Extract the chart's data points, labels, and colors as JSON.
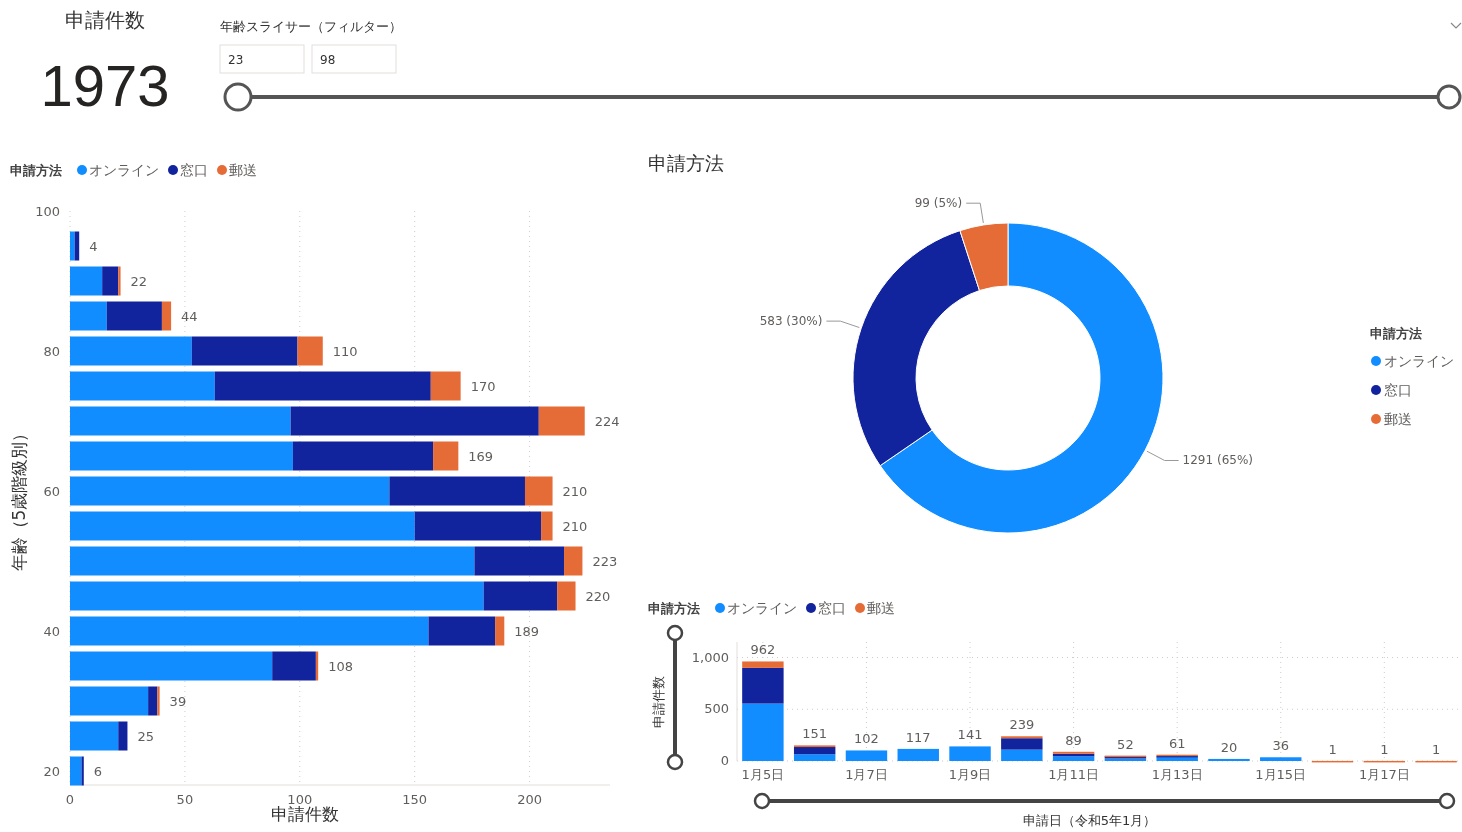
{
  "chart_data": [
    {
      "type": "other",
      "title": "申請件数",
      "annotations": [
        "1973",
        "年齢スライサー（フィルター）",
        "23",
        "98"
      ]
    },
    {
      "type": "bar",
      "orientation": "horizontal",
      "stacked": true,
      "xlabel": "申請件数",
      "ylabel": "年齢（5歳階級別）",
      "legend_title": "申請方法",
      "legend": "top left",
      "grid": "x",
      "x": [
        20,
        25,
        30,
        35,
        40,
        45,
        50,
        55,
        60,
        65,
        70,
        75,
        80,
        85,
        90,
        95
      ],
      "xlim": [
        0,
        235
      ],
      "xticks": [
        0,
        50,
        100,
        150,
        200
      ],
      "ylim": [
        18,
        100
      ],
      "yticks": [
        20,
        40,
        60,
        80,
        100
      ],
      "series": [
        {
          "name": "オンライン",
          "color": "#118dff",
          "values": [
            5,
            21,
            34,
            88,
            156,
            180,
            176,
            150,
            139,
            97,
            96,
            63,
            53,
            16,
            14,
            2
          ]
        },
        {
          "name": "窓口",
          "color": "#12239e",
          "values": [
            1,
            4,
            4,
            19,
            29,
            32,
            39,
            55,
            59,
            61,
            108,
            94,
            46,
            24,
            7,
            2
          ]
        },
        {
          "name": "郵送",
          "color": "#e66c37",
          "values": [
            0,
            0,
            1,
            1,
            4,
            8,
            8,
            5,
            12,
            11,
            20,
            13,
            11,
            4,
            1,
            0
          ]
        }
      ],
      "totals": [
        "6",
        "25",
        "39",
        "108",
        "189",
        "220",
        "223",
        "210",
        "210",
        "169",
        "224",
        "170",
        "110",
        "44",
        "22",
        "4"
      ]
    },
    {
      "type": "donut",
      "title": "申請方法",
      "legend_title": "申請方法",
      "legend": "right",
      "categories": [
        "オンライン",
        "窓口",
        "郵送"
      ],
      "values": [
        1291,
        583,
        99
      ],
      "colors": [
        "#118dff",
        "#12239e",
        "#e66c37"
      ],
      "value_labels": [
        "1291 (65%)",
        "583 (30%)",
        "99 (5%)"
      ]
    },
    {
      "type": "bar",
      "stacked": true,
      "xlabel": "申請日（令和5年1月）",
      "ylabel": "申請件数",
      "legend_title": "申請方法",
      "legend": "top left",
      "grid": true,
      "categories": [
        "1月5日",
        null,
        "1月7日",
        null,
        "1月9日",
        null,
        "1月11日",
        null,
        "1月13日",
        null,
        "1月15日",
        null,
        "1月17日",
        null
      ],
      "ylim": [
        0,
        1150
      ],
      "yticks": [
        0,
        500,
        {
          "value": 1000,
          "label": "1,000"
        }
      ],
      "series": [
        {
          "name": "オンライン",
          "color": "#118dff",
          "values": [
            555,
            65,
            102,
            117,
            141,
            110,
            45,
            25,
            40,
            20,
            36,
            0,
            0,
            0
          ]
        },
        {
          "name": "窓口",
          "color": "#12239e",
          "values": [
            345,
            70,
            0,
            0,
            0,
            110,
            25,
            20,
            10,
            0,
            0,
            0,
            0,
            0
          ]
        },
        {
          "name": "郵送",
          "color": "#e66c37",
          "values": [
            62,
            16,
            0,
            0,
            0,
            19,
            19,
            7,
            11,
            0,
            0,
            1,
            1,
            1
          ]
        }
      ],
      "totals": [
        "962",
        "151",
        "102",
        "117",
        "141",
        "239",
        "89",
        "52",
        "61",
        "20",
        "36",
        "1",
        "1",
        "1"
      ]
    }
  ]
}
